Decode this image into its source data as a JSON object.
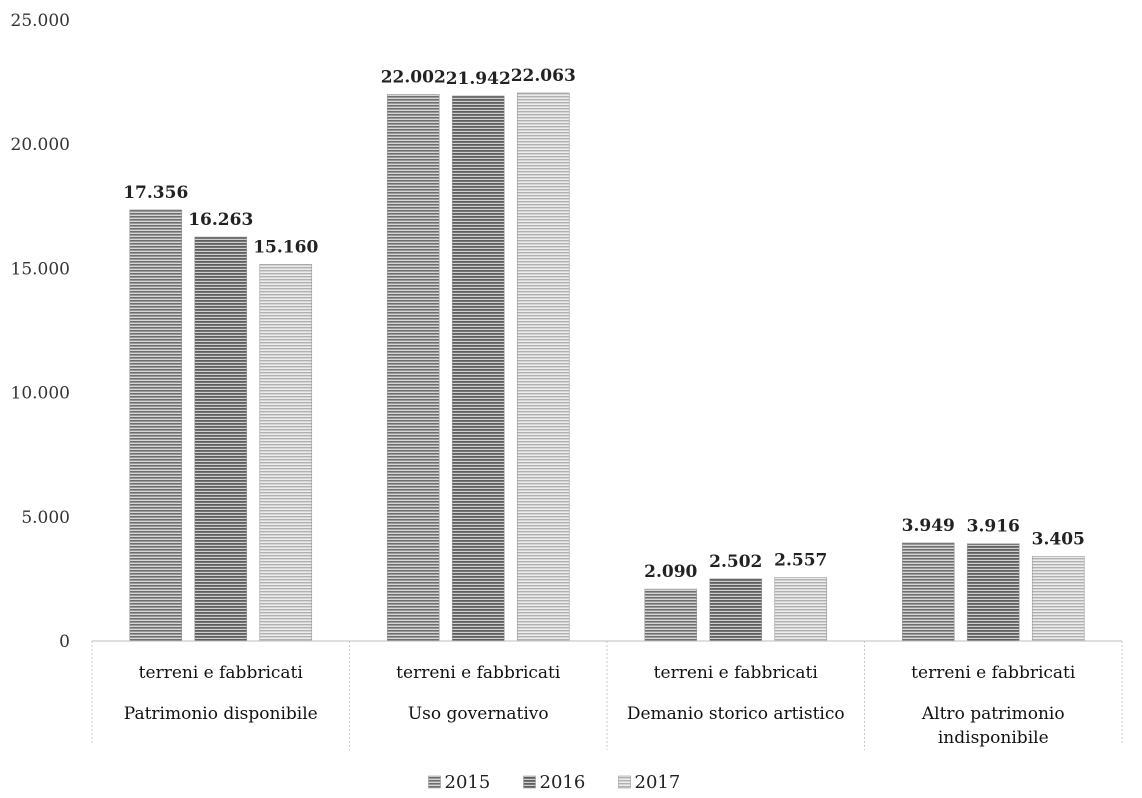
{
  "chart_data": {
    "type": "bar",
    "title": "",
    "xlabel": "",
    "ylabel": "",
    "ylim": [
      0,
      25000
    ],
    "yticks": [
      "0",
      "5.000",
      "10.000",
      "15.000",
      "20.000",
      "25.000"
    ],
    "ytick_values": [
      0,
      5000,
      10000,
      15000,
      20000,
      25000
    ],
    "grid": false,
    "legend_position": "bottom",
    "categories": [
      {
        "sub": "terreni e fabbricati",
        "group": [
          "Patrimonio disponibile"
        ]
      },
      {
        "sub": "terreni e fabbricati",
        "group": [
          "Uso governativo"
        ]
      },
      {
        "sub": "terreni e fabbricati",
        "group": [
          "Demanio storico artistico"
        ]
      },
      {
        "sub": "terreni e fabbricati",
        "group": [
          "Altro patrimonio",
          "indisponibile"
        ]
      }
    ],
    "series": [
      {
        "name": "2015",
        "values": [
          17356,
          22002,
          2090,
          3949
        ],
        "labels": [
          "17.356",
          "22.002",
          "2.090",
          "3.949"
        ],
        "color": "#8a8a8a"
      },
      {
        "name": "2016",
        "values": [
          16263,
          21942,
          2502,
          3916
        ],
        "labels": [
          "16.263",
          "21.942",
          "2.502",
          "3.916"
        ],
        "color": "#7a7a7a"
      },
      {
        "name": "2017",
        "values": [
          15160,
          22063,
          2557,
          3405
        ],
        "labels": [
          "15.160",
          "22.063",
          "2.557",
          "3.405"
        ],
        "color": "#c4c4c4"
      }
    ]
  }
}
